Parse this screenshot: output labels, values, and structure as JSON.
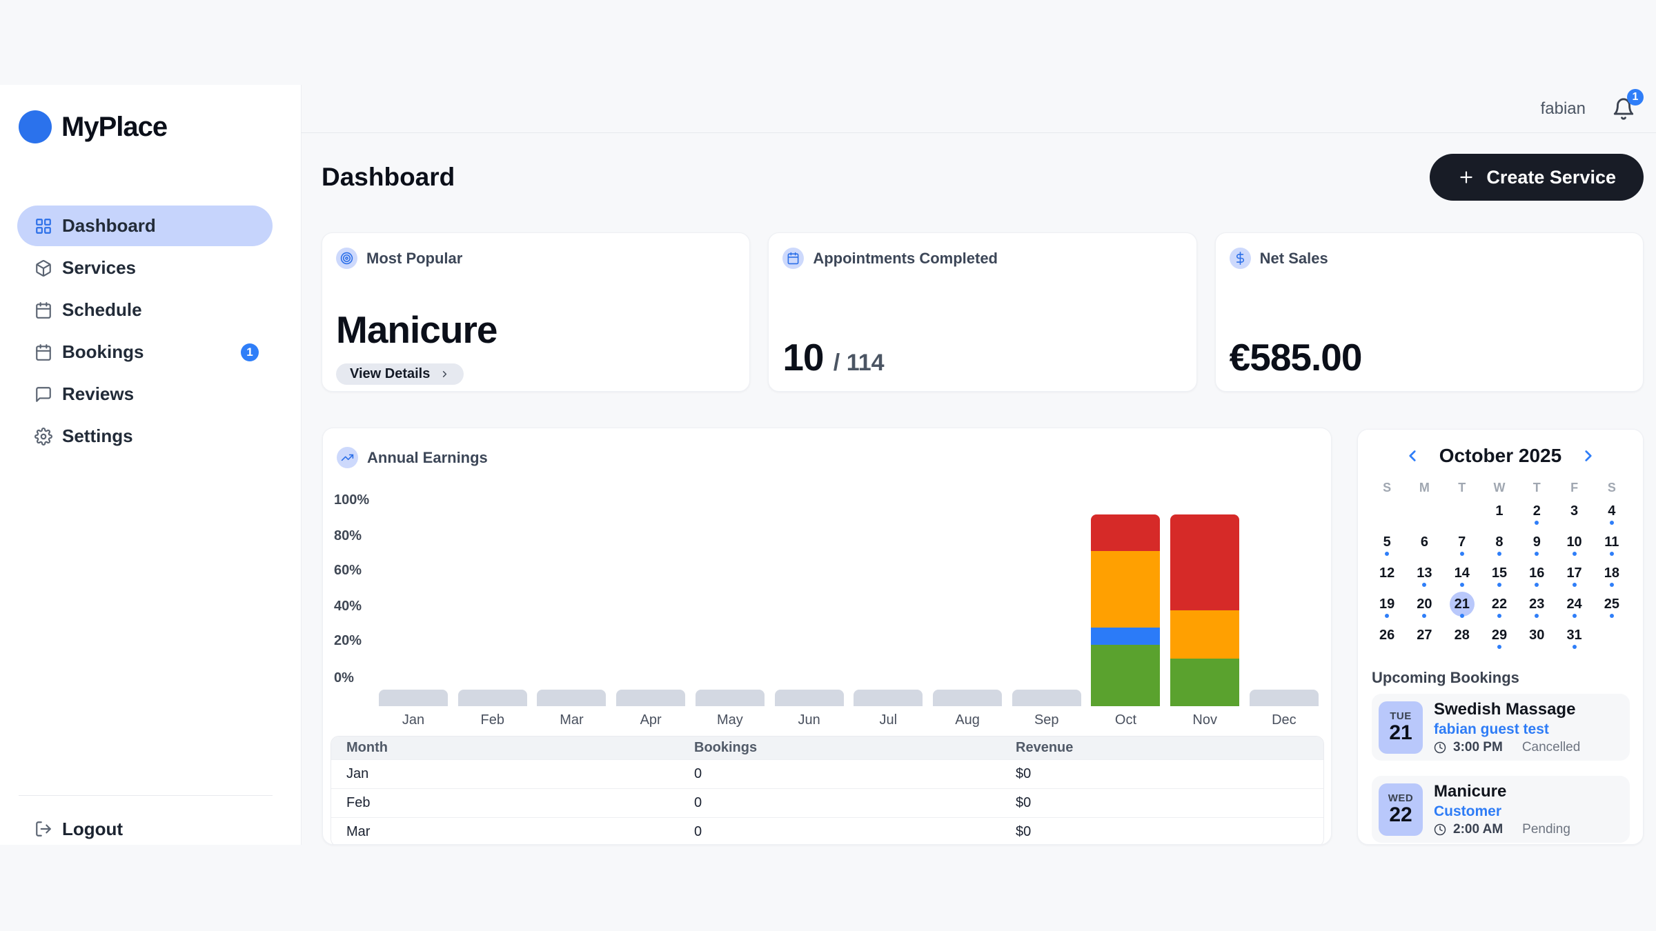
{
  "brand": {
    "name": "MyPlace",
    "logo_color": "#2b72ec"
  },
  "topbar": {
    "username": "fabian",
    "notification_count": "1"
  },
  "sidebar": {
    "items": [
      {
        "label": "Dashboard",
        "icon": "grid",
        "active": true
      },
      {
        "label": "Services",
        "icon": "package"
      },
      {
        "label": "Schedule",
        "icon": "calendar"
      },
      {
        "label": "Bookings",
        "icon": "calendar",
        "badge": "1"
      },
      {
        "label": "Reviews",
        "icon": "message"
      },
      {
        "label": "Settings",
        "icon": "gear"
      }
    ],
    "logout_label": "Logout"
  },
  "page": {
    "title": "Dashboard",
    "create_button_label": "Create Service"
  },
  "stats": {
    "most_popular": {
      "icon": "target",
      "label": "Most Popular",
      "value": "Manicure",
      "action_label": "View Details"
    },
    "appointments": {
      "icon": "calendar",
      "label": "Appointments Completed",
      "value": "10",
      "separator": "/ ",
      "total": "114"
    },
    "net_sales": {
      "icon": "dollar",
      "label": "Net Sales",
      "value": "€585.00"
    }
  },
  "chart_data": {
    "type": "bar",
    "stacked": true,
    "title": "Annual Earnings",
    "categories": [
      "Jan",
      "Feb",
      "Mar",
      "Apr",
      "May",
      "Jun",
      "Jul",
      "Aug",
      "Sep",
      "Oct",
      "Nov",
      "Dec"
    ],
    "series": [
      {
        "name": "segment-green",
        "color": "#5aa22e",
        "values": [
          0,
          0,
          0,
          0,
          0,
          0,
          0,
          0,
          0,
          32,
          25,
          0
        ]
      },
      {
        "name": "segment-blue",
        "color": "#2b7bf8",
        "values": [
          0,
          0,
          0,
          0,
          0,
          0,
          0,
          0,
          0,
          9,
          0,
          0
        ]
      },
      {
        "name": "segment-orange",
        "color": "#ffa001",
        "values": [
          0,
          0,
          0,
          0,
          0,
          0,
          0,
          0,
          0,
          40,
          25,
          0
        ]
      },
      {
        "name": "segment-red",
        "color": "#d62a28",
        "values": [
          0,
          0,
          0,
          0,
          0,
          0,
          0,
          0,
          0,
          19,
          50,
          0
        ]
      }
    ],
    "y_ticks": [
      "100%",
      "80%",
      "60%",
      "40%",
      "20%",
      "0%"
    ],
    "ylim": [
      0,
      100
    ],
    "unit": "%",
    "grid": false,
    "legend": "none",
    "placeholder_color": "#d3d8e2"
  },
  "month_table": {
    "headers": [
      "Month",
      "Bookings",
      "Revenue"
    ],
    "rows": [
      [
        "Jan",
        "0",
        "$0"
      ],
      [
        "Feb",
        "0",
        "$0"
      ],
      [
        "Mar",
        "0",
        "$0"
      ]
    ]
  },
  "calendar": {
    "title": "October 2025",
    "weekdays": [
      "S",
      "M",
      "T",
      "W",
      "T",
      "F",
      "S"
    ],
    "days": [
      {
        "d": ""
      },
      {
        "d": ""
      },
      {
        "d": ""
      },
      {
        "d": "1"
      },
      {
        "d": "2",
        "dot": true
      },
      {
        "d": "3"
      },
      {
        "d": "4",
        "dot": true
      },
      {
        "d": "5",
        "dot": true
      },
      {
        "d": "6"
      },
      {
        "d": "7",
        "dot": true
      },
      {
        "d": "8",
        "dot": true
      },
      {
        "d": "9",
        "dot": true
      },
      {
        "d": "10",
        "dot": true
      },
      {
        "d": "11",
        "dot": true
      },
      {
        "d": "12"
      },
      {
        "d": "13",
        "dot": true
      },
      {
        "d": "14",
        "dot": true
      },
      {
        "d": "15",
        "dot": true
      },
      {
        "d": "16",
        "dot": true
      },
      {
        "d": "17",
        "dot": true
      },
      {
        "d": "18",
        "dot": true
      },
      {
        "d": "19",
        "dot": true
      },
      {
        "d": "20",
        "dot": true
      },
      {
        "d": "21",
        "dot": true,
        "selected": true
      },
      {
        "d": "22",
        "dot": true
      },
      {
        "d": "23",
        "dot": true
      },
      {
        "d": "24",
        "dot": true
      },
      {
        "d": "25",
        "dot": true
      },
      {
        "d": "26"
      },
      {
        "d": "27"
      },
      {
        "d": "28"
      },
      {
        "d": "29",
        "dot": true
      },
      {
        "d": "30"
      },
      {
        "d": "31",
        "dot": true
      },
      {
        "d": ""
      }
    ]
  },
  "upcoming": {
    "title": "Upcoming Bookings",
    "bookings": [
      {
        "day_abbr": "TUE",
        "day": "21",
        "service": "Swedish Massage",
        "customer": "fabian guest test",
        "time": "3:00 PM",
        "status": "Cancelled"
      },
      {
        "day_abbr": "WED",
        "day": "22",
        "service": "Manicure",
        "customer": "Customer",
        "time": "2:00 AM",
        "status": "Pending"
      }
    ]
  }
}
